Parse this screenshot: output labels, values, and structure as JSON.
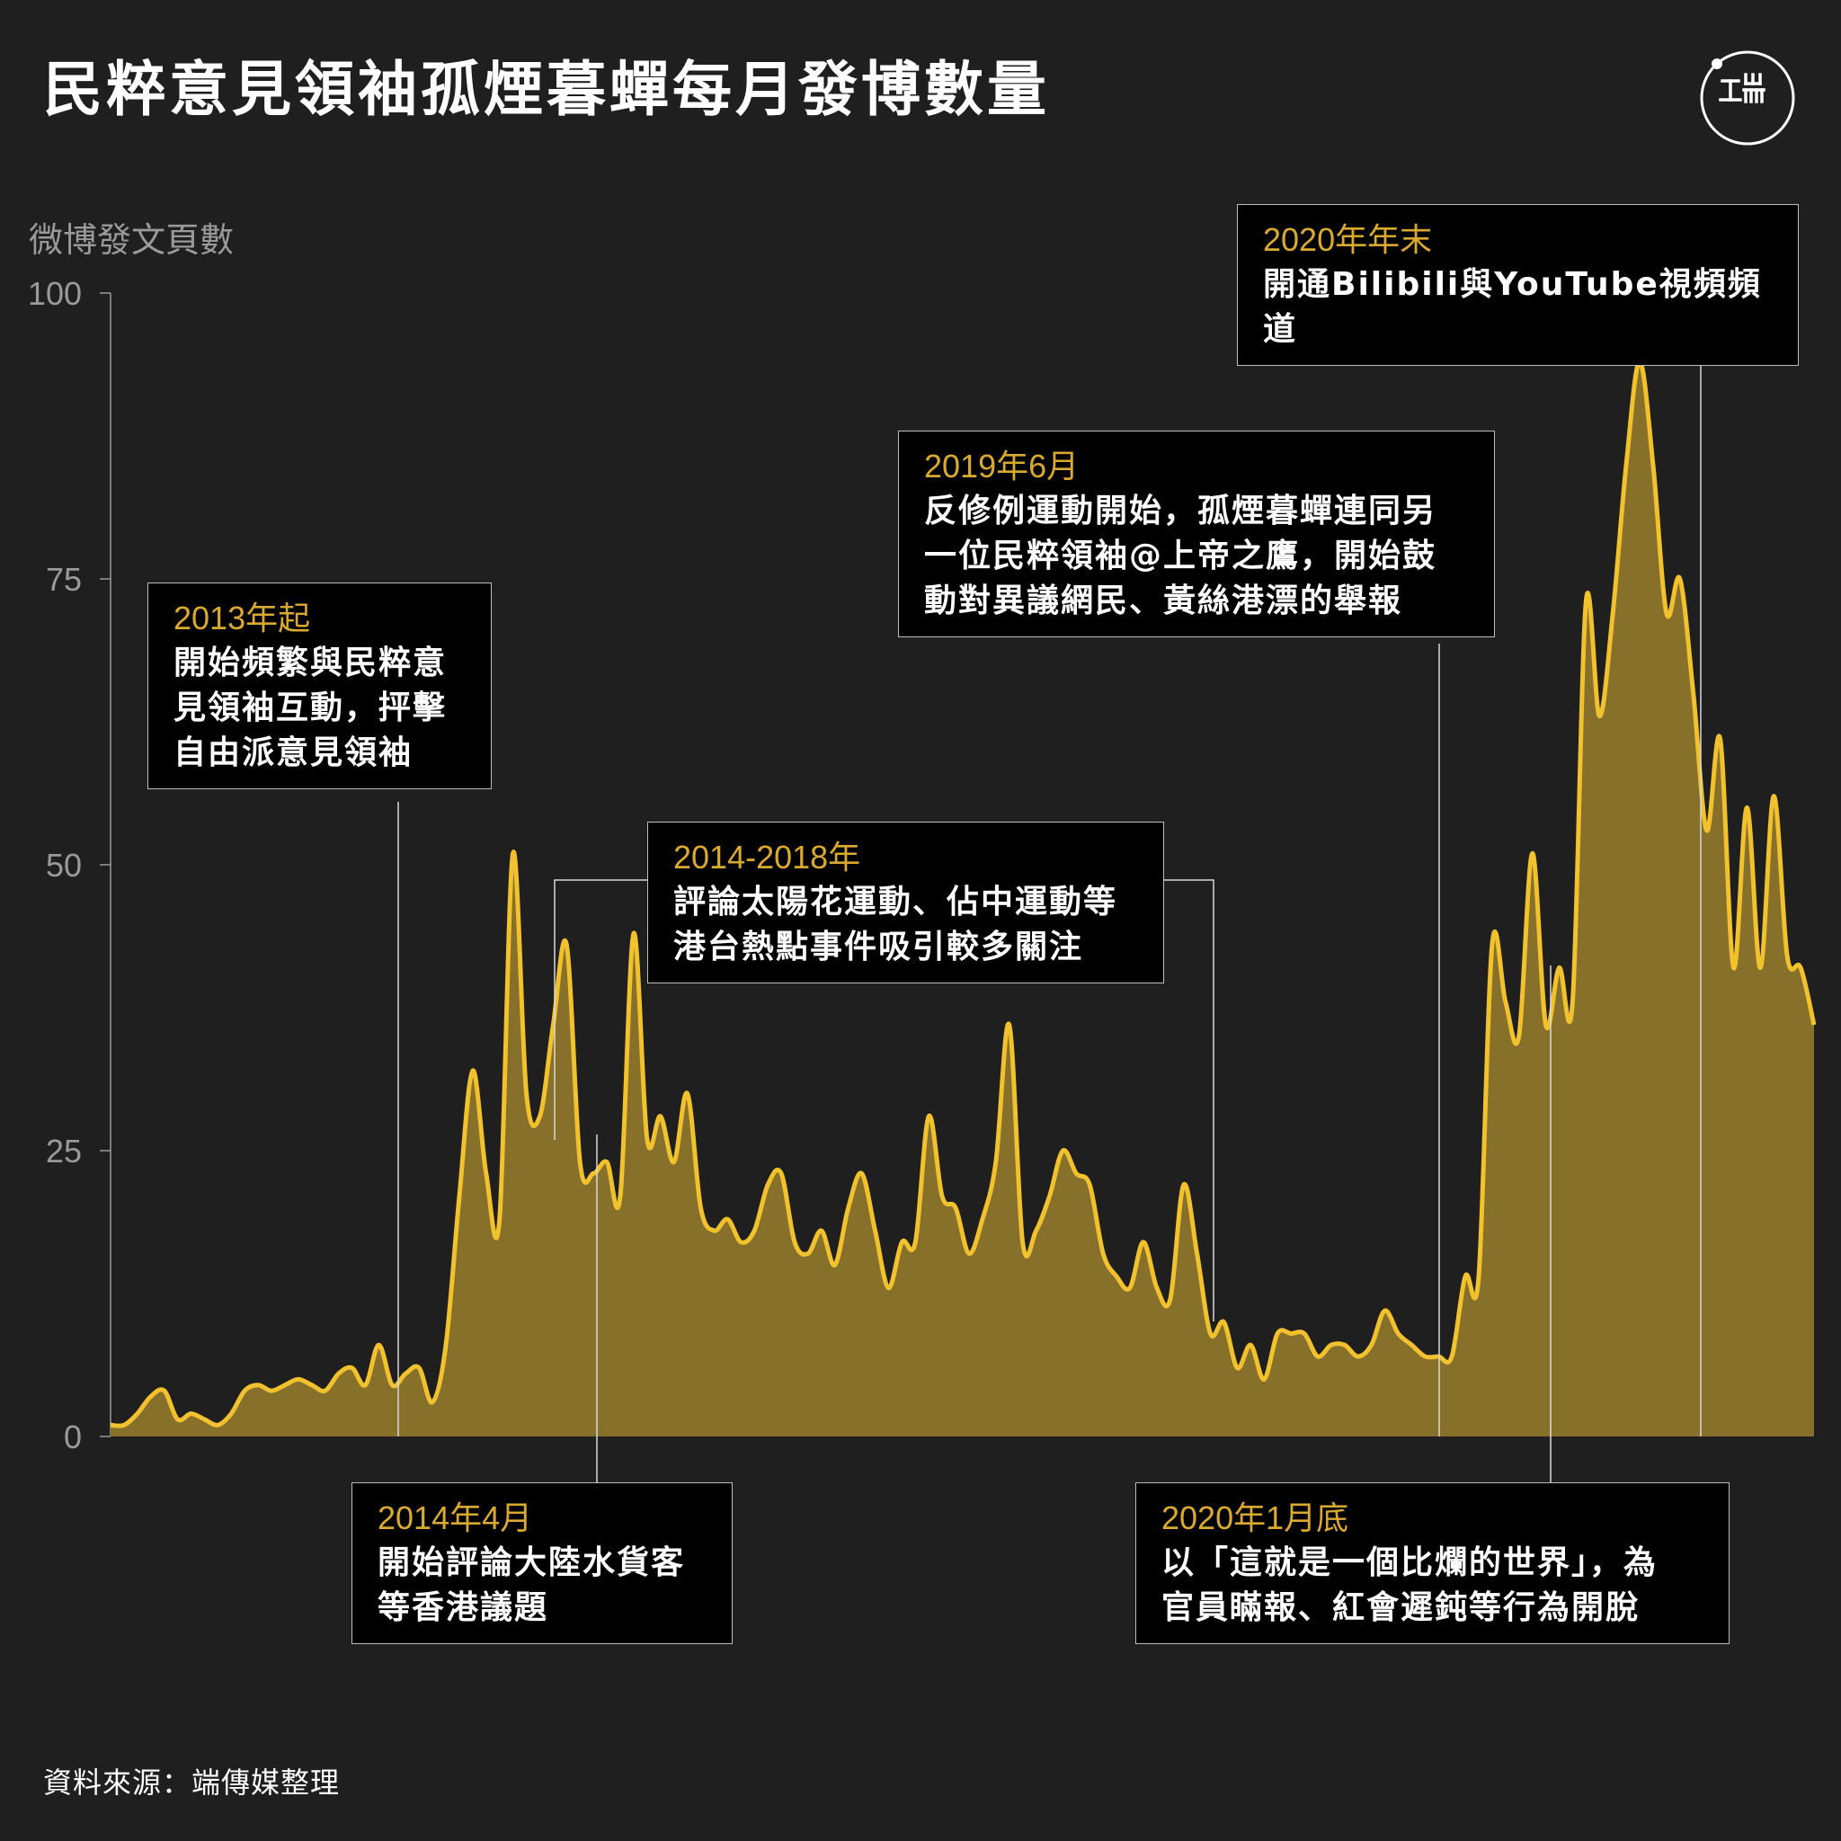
{
  "title": "民粹意見領袖孤煙暮蟬每月發博數量",
  "source": "資料來源：端傳媒整理",
  "colors": {
    "background": "#1f1f1f",
    "line": "#f2c12e",
    "fill": "#87712a",
    "date_text": "#d9a931",
    "axis": "#9a9a9a"
  },
  "logo": {
    "icon": "initium-logo-icon"
  },
  "chart_data": {
    "type": "area",
    "ylabel": "微博發文頁數",
    "ylim": [
      0,
      100
    ],
    "yticks": [
      "0",
      "25",
      "50",
      "75",
      "100"
    ],
    "grid": false,
    "series": [
      {
        "values": [
          1,
          1,
          2,
          3.5,
          4,
          1.5,
          2,
          1.5,
          1,
          2,
          4,
          4.5,
          4,
          4.5,
          5,
          4.5,
          4,
          5.5,
          6,
          4.5,
          8,
          4.5,
          5.5,
          6,
          3,
          8,
          21,
          32,
          23,
          19,
          51,
          30,
          28,
          36,
          43,
          24,
          23,
          24,
          21,
          44,
          26,
          28,
          24,
          30,
          20,
          18,
          19,
          17,
          18,
          22,
          23,
          17,
          16,
          18,
          15,
          20,
          23,
          18,
          13,
          17,
          17,
          28,
          21,
          20,
          16,
          19,
          24,
          36,
          17,
          18,
          21,
          25,
          23,
          22,
          16,
          14,
          13,
          17,
          13,
          12,
          22,
          16,
          9,
          10,
          6,
          8,
          5,
          9,
          9,
          9,
          7,
          8,
          8,
          7,
          8,
          11,
          9,
          8,
          7,
          7,
          7,
          14,
          14,
          43,
          38,
          35,
          51,
          36,
          41,
          38,
          73,
          63,
          72,
          85,
          94,
          85,
          72,
          75,
          65,
          53,
          61,
          41,
          55,
          41,
          56,
          42,
          41,
          36
        ]
      }
    ],
    "annotations": [
      {
        "date": "2013年起",
        "text": "開始頻繁與民粹意\n見領袖互動，抨擊\n自由派意見領袖"
      },
      {
        "date": "2014-2018年",
        "text": "評論太陽花運動、佔中運動等\n港台熱點事件吸引較多關注"
      },
      {
        "date": "2019年6月",
        "text": "反修例運動開始，孤煙暮蟬連同另\n一位民粹領袖@上帝之鷹，開始鼓\n動對異議網民、黃絲港漂的舉報"
      },
      {
        "date": "2020年年末",
        "text": "開通Bilibili與YouTube視頻頻道"
      },
      {
        "date": "2014年4月",
        "text": "開始評論大陸水貨客\n等香港議題"
      },
      {
        "date": "2020年1月底",
        "text": "以「這就是一個比爛的世界」，為\n官員瞞報、紅會遲鈍等行為開脫"
      }
    ]
  }
}
